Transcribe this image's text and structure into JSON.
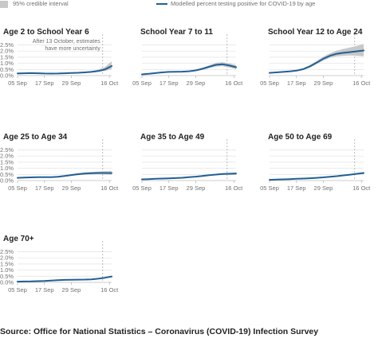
{
  "legend": {
    "band_label": "95% credible interval",
    "line_label": "Modelled percent testing positive for COVID-19 by age"
  },
  "source": "Source: Office for National Statistics – Coronavirus (COVID-19) Infection Survey",
  "colors": {
    "line": "#206095",
    "band": "#c8c8c8",
    "grid": "#e6e6e6",
    "axis": "#bbbbbb",
    "marker": "#aaaaaa"
  },
  "chart_data": [
    {
      "type": "line",
      "title": "Age 2 to School Year 6",
      "x_ticks": [
        "05 Sep",
        "17 Sep",
        "29 Sep",
        "16 Oct"
      ],
      "x_tick_days": [
        0,
        12,
        24,
        41
      ],
      "x_range_days": [
        0,
        42
      ],
      "y_ticks": [
        "0.0%",
        "0.5%",
        "1.0%",
        "1.5%",
        "2.0%",
        "2.5%"
      ],
      "ylim": [
        0,
        2.6
      ],
      "grid": true,
      "annotation": "After 13 October, estimates have more uncertainty",
      "marker_day": 38,
      "series": [
        {
          "x": [
            0,
            3,
            6,
            9,
            12,
            15,
            18,
            21,
            24,
            27,
            30,
            33,
            36,
            39,
            42
          ],
          "y": [
            0.17,
            0.19,
            0.2,
            0.19,
            0.17,
            0.16,
            0.17,
            0.19,
            0.21,
            0.23,
            0.26,
            0.3,
            0.37,
            0.5,
            0.78
          ],
          "lower": [
            0.12,
            0.15,
            0.16,
            0.15,
            0.14,
            0.13,
            0.14,
            0.16,
            0.18,
            0.2,
            0.22,
            0.25,
            0.3,
            0.38,
            0.52
          ],
          "upper": [
            0.24,
            0.25,
            0.25,
            0.24,
            0.21,
            0.2,
            0.21,
            0.23,
            0.25,
            0.27,
            0.31,
            0.37,
            0.48,
            0.7,
            1.15
          ]
        }
      ]
    },
    {
      "type": "line",
      "title": "School Year 7 to 11",
      "x_ticks": [
        "05 Sep",
        "17 Sep",
        "29 Sep",
        "16 Oct"
      ],
      "x_tick_days": [
        0,
        12,
        24,
        41
      ],
      "x_range_days": [
        0,
        42
      ],
      "ylim": [
        0,
        2.6
      ],
      "grid": true,
      "marker_day": 38,
      "series": [
        {
          "x": [
            0,
            3,
            6,
            9,
            12,
            15,
            18,
            21,
            24,
            27,
            30,
            33,
            36,
            39,
            42
          ],
          "y": [
            0.1,
            0.14,
            0.2,
            0.26,
            0.3,
            0.31,
            0.32,
            0.35,
            0.42,
            0.55,
            0.72,
            0.88,
            0.92,
            0.82,
            0.68
          ],
          "lower": [
            0.07,
            0.1,
            0.16,
            0.21,
            0.25,
            0.26,
            0.27,
            0.3,
            0.36,
            0.47,
            0.61,
            0.74,
            0.76,
            0.66,
            0.52
          ],
          "upper": [
            0.14,
            0.19,
            0.25,
            0.31,
            0.35,
            0.36,
            0.38,
            0.41,
            0.49,
            0.64,
            0.84,
            1.04,
            1.1,
            1.0,
            0.86
          ]
        }
      ]
    },
    {
      "type": "line",
      "title": "School Year 12 to Age 24",
      "x_ticks": [
        "05 Sep",
        "17 Sep",
        "29 Sep",
        "16 Oct"
      ],
      "x_tick_days": [
        0,
        12,
        24,
        41
      ],
      "x_range_days": [
        0,
        42
      ],
      "ylim": [
        0,
        2.6
      ],
      "grid": true,
      "marker_day": 38,
      "series": [
        {
          "x": [
            0,
            3,
            6,
            9,
            12,
            15,
            18,
            21,
            24,
            27,
            30,
            33,
            36,
            39,
            42
          ],
          "y": [
            0.22,
            0.26,
            0.3,
            0.34,
            0.4,
            0.52,
            0.75,
            1.05,
            1.38,
            1.62,
            1.78,
            1.86,
            1.92,
            1.98,
            2.05
          ],
          "lower": [
            0.17,
            0.21,
            0.25,
            0.29,
            0.34,
            0.45,
            0.65,
            0.93,
            1.23,
            1.46,
            1.58,
            1.62,
            1.64,
            1.62,
            1.58
          ],
          "upper": [
            0.28,
            0.31,
            0.35,
            0.4,
            0.47,
            0.6,
            0.86,
            1.18,
            1.54,
            1.82,
            2.04,
            2.18,
            2.3,
            2.42,
            2.58
          ]
        }
      ]
    },
    {
      "type": "line",
      "title": "Age 25 to Age 34",
      "x_ticks": [
        "05 Sep",
        "17 Sep",
        "29 Sep",
        "16 Oct"
      ],
      "x_tick_days": [
        0,
        12,
        24,
        41
      ],
      "x_range_days": [
        0,
        42
      ],
      "y_ticks": [
        "0.0%",
        "0.5%",
        "1.0%",
        "1.5%",
        "2.0%",
        "2.5%"
      ],
      "ylim": [
        0,
        2.6
      ],
      "grid": true,
      "marker_day": 38,
      "series": [
        {
          "x": [
            0,
            3,
            6,
            9,
            12,
            15,
            18,
            21,
            24,
            27,
            30,
            33,
            36,
            39,
            42
          ],
          "y": [
            0.22,
            0.24,
            0.26,
            0.27,
            0.27,
            0.28,
            0.31,
            0.37,
            0.45,
            0.52,
            0.57,
            0.6,
            0.62,
            0.62,
            0.61
          ],
          "lower": [
            0.18,
            0.2,
            0.22,
            0.23,
            0.23,
            0.24,
            0.27,
            0.32,
            0.39,
            0.45,
            0.49,
            0.51,
            0.52,
            0.51,
            0.48
          ],
          "upper": [
            0.26,
            0.28,
            0.3,
            0.31,
            0.31,
            0.32,
            0.36,
            0.43,
            0.52,
            0.6,
            0.66,
            0.7,
            0.73,
            0.76,
            0.78
          ]
        }
      ]
    },
    {
      "type": "line",
      "title": "Age 35 to Age 49",
      "x_ticks": [
        "05 Sep",
        "17 Sep",
        "29 Sep",
        "16 Oct"
      ],
      "x_tick_days": [
        0,
        12,
        24,
        41
      ],
      "x_range_days": [
        0,
        42
      ],
      "ylim": [
        0,
        2.6
      ],
      "grid": true,
      "marker_day": 38,
      "series": [
        {
          "x": [
            0,
            3,
            6,
            9,
            12,
            15,
            18,
            21,
            24,
            27,
            30,
            33,
            36,
            39,
            42
          ],
          "y": [
            0.1,
            0.12,
            0.14,
            0.16,
            0.18,
            0.2,
            0.23,
            0.27,
            0.32,
            0.38,
            0.44,
            0.49,
            0.53,
            0.55,
            0.57
          ],
          "lower": [
            0.08,
            0.1,
            0.12,
            0.14,
            0.16,
            0.18,
            0.2,
            0.24,
            0.28,
            0.34,
            0.39,
            0.43,
            0.46,
            0.47,
            0.47
          ],
          "upper": [
            0.12,
            0.14,
            0.16,
            0.18,
            0.2,
            0.22,
            0.26,
            0.3,
            0.36,
            0.42,
            0.49,
            0.55,
            0.6,
            0.64,
            0.68
          ]
        }
      ]
    },
    {
      "type": "line",
      "title": "Age 50 to Age 69",
      "x_ticks": [
        "05 Sep",
        "17 Sep",
        "29 Sep",
        "16 Oct"
      ],
      "x_tick_days": [
        0,
        12,
        24,
        41
      ],
      "x_range_days": [
        0,
        42
      ],
      "ylim": [
        0,
        2.6
      ],
      "grid": true,
      "marker_day": 38,
      "series": [
        {
          "x": [
            0,
            3,
            6,
            9,
            12,
            15,
            18,
            21,
            24,
            27,
            30,
            33,
            36,
            39,
            42
          ],
          "y": [
            0.06,
            0.08,
            0.1,
            0.12,
            0.14,
            0.16,
            0.19,
            0.22,
            0.26,
            0.31,
            0.36,
            0.42,
            0.48,
            0.55,
            0.62
          ],
          "lower": [
            0.05,
            0.06,
            0.08,
            0.1,
            0.12,
            0.14,
            0.17,
            0.2,
            0.23,
            0.28,
            0.33,
            0.38,
            0.43,
            0.49,
            0.54
          ],
          "upper": [
            0.07,
            0.09,
            0.11,
            0.13,
            0.15,
            0.18,
            0.21,
            0.24,
            0.28,
            0.34,
            0.39,
            0.46,
            0.53,
            0.61,
            0.7
          ]
        }
      ]
    },
    {
      "type": "line",
      "title": "Age 70+",
      "x_ticks": [
        "05 Sep",
        "17 Sep",
        "29 Sep",
        "16 Oct"
      ],
      "x_tick_days": [
        0,
        12,
        24,
        41
      ],
      "x_range_days": [
        0,
        42
      ],
      "y_ticks": [
        "0.0%",
        "0.5%",
        "1.0%",
        "1.5%",
        "2.0%",
        "2.5%"
      ],
      "ylim": [
        0,
        2.6
      ],
      "grid": true,
      "marker_day": 38,
      "series": [
        {
          "x": [
            0,
            3,
            6,
            9,
            12,
            15,
            18,
            21,
            24,
            27,
            30,
            33,
            36,
            39,
            42
          ],
          "y": [
            0.06,
            0.07,
            0.08,
            0.1,
            0.12,
            0.15,
            0.18,
            0.2,
            0.21,
            0.22,
            0.23,
            0.25,
            0.3,
            0.38,
            0.48
          ],
          "lower": [
            0.05,
            0.06,
            0.07,
            0.09,
            0.11,
            0.14,
            0.17,
            0.19,
            0.2,
            0.21,
            0.22,
            0.23,
            0.27,
            0.34,
            0.42
          ],
          "upper": [
            0.07,
            0.08,
            0.09,
            0.11,
            0.13,
            0.16,
            0.19,
            0.21,
            0.22,
            0.23,
            0.24,
            0.27,
            0.33,
            0.42,
            0.54
          ]
        }
      ]
    }
  ]
}
